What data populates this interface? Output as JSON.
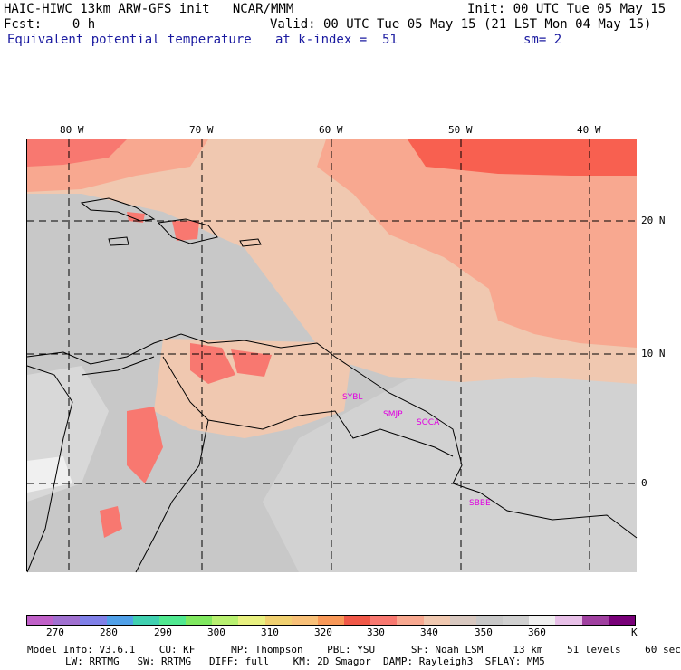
{
  "header": {
    "title": "HAIC-HIWC 13km ARW-GFS init   NCAR/MMM",
    "init": "Init: 00 UTC Tue 05 May 15",
    "fcst": "Fcst:    0 h",
    "valid": "Valid: 00 UTC Tue 05 May 15 (21 LST Mon 04 May 15)",
    "field": "Equivalent potential temperature",
    "level": "at k-index =  51",
    "smooth": "sm= 2"
  },
  "map": {
    "lon_labels": [
      "80 W",
      "70 W",
      "60 W",
      "50 W",
      "40 W"
    ],
    "lat_labels": [
      "20 N",
      "10 N",
      "0"
    ],
    "stations": [
      "SYBL",
      "SMJP",
      "SOCA",
      "SBBE"
    ]
  },
  "colorbar": {
    "tick_labels": [
      "270",
      "280",
      "290",
      "300",
      "310",
      "320",
      "330",
      "340",
      "350",
      "360",
      "K"
    ],
    "colors": [
      "#c060c8",
      "#a070d0",
      "#8080e8",
      "#50a0e8",
      "#40d0b0",
      "#50e890",
      "#80e860",
      "#b8f070",
      "#e8f080",
      "#f0d070",
      "#f8c078",
      "#f89858",
      "#f05848",
      "#f87870",
      "#f8a890",
      "#f0c8b0",
      "#d8c8c0",
      "#c8c8c8",
      "#d0d0d0",
      "#f0f0f0",
      "#e8c0e8",
      "#a040a0",
      "#780078"
    ]
  },
  "footer": {
    "line1": "Model Info: V3.6.1    CU: KF      MP: Thompson    PBL: YSU      SF: Noah LSM     13 km    51 levels    60 sec",
    "line2": "LW: RRTMG   SW: RRTMG   DIFF: full    KM: 2D Smagor  DAMP: Rayleigh3  SFLAY: MM5"
  }
}
